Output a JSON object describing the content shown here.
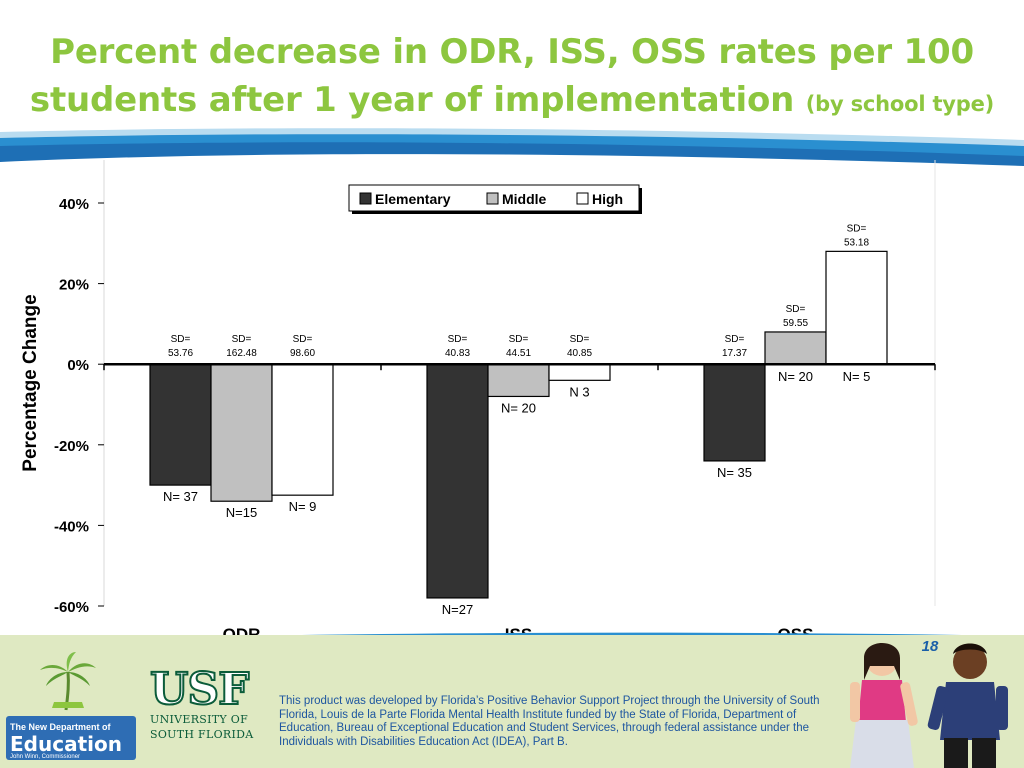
{
  "title": {
    "main": "Percent decrease in ODR, ISS, OSS rates per 100 students after 1 year of implementation",
    "sub": "(by school type)"
  },
  "colors": {
    "title_green": "#8dc63f",
    "elementary": "#333333",
    "middle": "#c0c0c0",
    "high": "#ffffff",
    "footer_blue": "#1e56a0"
  },
  "chart_data": {
    "type": "bar",
    "categories": [
      "ODR",
      "ISS",
      "OSS"
    ],
    "ylabel": "Percentage Change",
    "ylim": [
      -60,
      40
    ],
    "yticks": [
      "40%",
      "20%",
      "0%",
      "-20%",
      "-40%",
      "-60%"
    ],
    "legend_position": "top-center",
    "series": [
      {
        "name": "Elementary",
        "values": [
          -30,
          -58,
          -24
        ],
        "n": [
          "N= 37",
          "N=27",
          "N= 35"
        ],
        "sd": [
          [
            "SD=",
            "53.76"
          ],
          [
            "SD=",
            "40.83"
          ],
          [
            "SD=",
            "17.37"
          ]
        ]
      },
      {
        "name": "Middle",
        "values": [
          -34,
          -8,
          8
        ],
        "n": [
          "N=15",
          "N= 20",
          "N= 20"
        ],
        "sd": [
          [
            "SD=",
            "162.48"
          ],
          [
            "SD=",
            "44.51"
          ],
          [
            "SD=",
            "59.55"
          ]
        ]
      },
      {
        "name": "High",
        "values": [
          -32.5,
          -4,
          28
        ],
        "n": [
          "N=  9",
          "N  3",
          "N= 5"
        ],
        "sd": [
          [
            "SD=",
            "98.60"
          ],
          [
            "SD=",
            "40.85"
          ],
          [
            "SD=",
            "53.18"
          ]
        ]
      }
    ]
  },
  "page_number": "18",
  "footer": {
    "doe_tagline": "Just Read, Florida!",
    "doe_dept": "The New Department of",
    "doe_edu": "Education",
    "doe_commissioner": "John Winn, Commissioner",
    "usf_mark": "USF",
    "usf_line1": "UNIVERSITY OF",
    "usf_line2": "SOUTH FLORIDA",
    "text": "This product was developed by Florida’s Positive Behavior Support Project through the University of South Florida, Louis de la Parte Florida Mental Health Institute funded by the State of Florida, Department of Education, Bureau of Exceptional Education and Student Services, through federal assistance under the Individuals with Disabilities Education Act (IDEA), Part B."
  }
}
